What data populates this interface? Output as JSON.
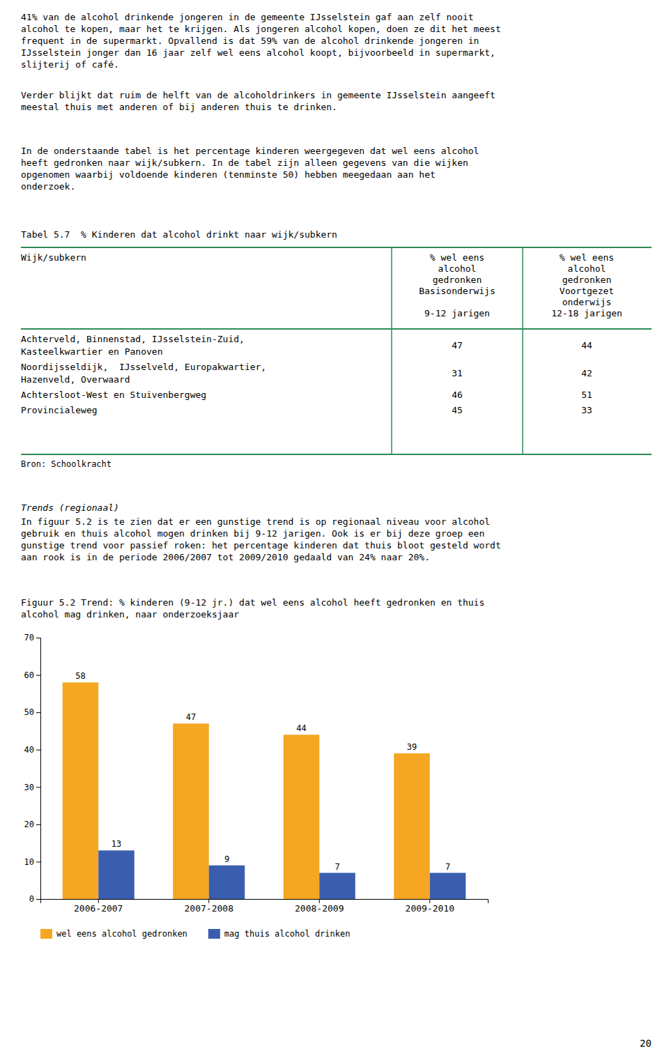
{
  "paragraphs": [
    "41% van de alcohol drinkende jongeren in de gemeente IJsselstein gaf aan zelf nooit\nalcohol te kopen, maar het te krijgen. Als jongeren alcohol kopen, doen ze dit het meest\nfrequent in de supermarkt. Opvallend is dat 59% van de alcohol drinkende jongeren in\nIJsselstein jonger dan 16 jaar zelf wel eens alcohol koopt, bijvoorbeeld in supermarkt,\nslijterij of café.",
    "Verder blijkt dat ruim de helft van de alcoholdrinkers in gemeente IJsselstein aangeeft\nmeestal thuis met anderen of bij anderen thuis te drinken.",
    "In de onderstaande tabel is het percentage kinderen weergegeven dat wel eens alcohol\nheeft gedronken naar wijk/subkern. In de tabel zijn alleen gegevens van die wijken\nopgenomen waarbij voldoende kinderen (tenminste 50) hebben meegedaan aan het\nonderzoek."
  ],
  "table": {
    "title": "Tabel 5.7  % Kinderen dat alcohol drinkt naar wijk/subkern",
    "headers": [
      "Wijk/subkern",
      "% wel eens\nalcohol\ngedronken\nBasisonderwijs\n\n9-12 jarigen",
      "% wel eens\nalcohol\ngedronken\nVoortgezet\nonderwijs\n12-18 jarigen"
    ],
    "rows": [
      [
        [
          "Achterveld, Binnenstad, IJsselstein-Zuid,",
          "Kasteelkwartier en Panoven"
        ],
        "47",
        "44"
      ],
      [
        [
          "Noordijsseldijk,  IJsselveld, Europakwartier,",
          "Hazenveld, Overwaard"
        ],
        "31",
        "42"
      ],
      [
        [
          "Achtersloot-West en Stuivenbergweg"
        ],
        "46",
        "51"
      ],
      [
        [
          "Provincialeweg"
        ],
        "45",
        "33"
      ]
    ],
    "source": "Bron: Schoolkracht"
  },
  "sections": [
    {
      "heading": "Trends (regionaal)",
      "body": "In figuur 5.2 is te zien dat er een gunstige trend is op regionaal niveau voor alcohol\ngebruik en thuis alcohol mogen drinken bij 9-12 jarigen. Ook is er bij deze groep een\ngunstige trend voor passief roken: het percentage kinderen dat thuis bloot gesteld wordt\naan rook is in de periode 2006/2007 tot 2009/2010 gedaald van 24% naar 20%."
    }
  ],
  "chart_data": {
    "type": "bar",
    "title": "Figuur 5.2 Trend: % kinderen (9-12 jr.) dat wel eens alcohol heeft gedronken en thuis\nalcohol mag drinken, naar onderzoeksjaar",
    "categories": [
      "2006-2007",
      "2007-2008",
      "2008-2009",
      "2009-2010"
    ],
    "series": [
      {
        "name": "wel eens alcohol gedronken",
        "color": "#F5A623",
        "values": [
          58,
          47,
          44,
          39
        ]
      },
      {
        "name": "mag thuis alcohol drinken",
        "color": "#3A5DAE",
        "values": [
          13,
          9,
          7,
          7
        ]
      }
    ],
    "ylim": [
      0,
      70
    ],
    "yticks": [
      0,
      10,
      20,
      30,
      40,
      50,
      60,
      70
    ],
    "grid": false,
    "legend": "bottom",
    "data_labels": true
  },
  "page_number": "20"
}
